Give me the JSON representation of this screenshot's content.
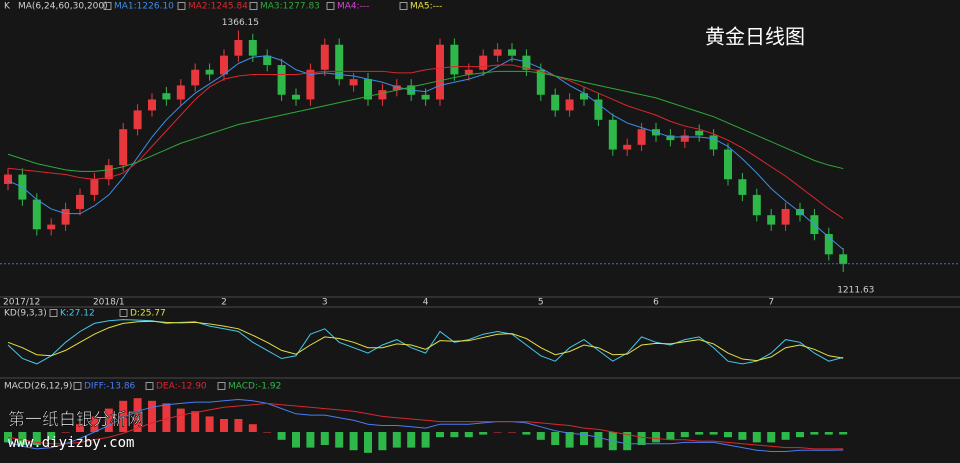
{
  "title": "黄金日线图",
  "watermark": [
    "第一纸白银分析网",
    "www.diyizby.com"
  ],
  "chart_data": [
    {
      "type": "candlestick",
      "label": "K",
      "params": "MA(6,24,60,30,200)",
      "categories": [
        "2017/12",
        null,
        null,
        null,
        null,
        null,
        null,
        "2018/1",
        null,
        null,
        null,
        null,
        null,
        null,
        null,
        "2",
        null,
        null,
        null,
        null,
        null,
        null,
        "3",
        null,
        null,
        null,
        null,
        null,
        null,
        "4",
        null,
        null,
        null,
        null,
        null,
        null,
        null,
        "5",
        null,
        null,
        null,
        null,
        null,
        null,
        null,
        "6",
        null,
        null,
        null,
        null,
        null,
        null,
        null,
        "7",
        null,
        null,
        null,
        null,
        null
      ],
      "open": [
        1268,
        1274,
        1258,
        1239,
        1242,
        1252,
        1261,
        1271,
        1280,
        1303,
        1315,
        1326,
        1322,
        1331,
        1341,
        1338,
        1350,
        1360,
        1350,
        1344,
        1325,
        1322,
        1341,
        1357,
        1331,
        1335,
        1322,
        1328,
        1331,
        1325,
        1322,
        1357,
        1338,
        1341,
        1350,
        1354,
        1350,
        1341,
        1325,
        1315,
        1326,
        1322,
        1309,
        1290,
        1293,
        1303,
        1299,
        1295,
        1302,
        1299,
        1290,
        1271,
        1261,
        1248,
        1242,
        1252,
        1248,
        1236,
        1223
      ],
      "high": [
        1278,
        1278,
        1262,
        1246,
        1256,
        1265,
        1275,
        1284,
        1307,
        1319,
        1326,
        1330,
        1335,
        1345,
        1345,
        1354,
        1366.15,
        1364,
        1354,
        1348,
        1329,
        1345,
        1361,
        1361,
        1339,
        1339,
        1332,
        1335,
        1335,
        1329,
        1361,
        1361,
        1345,
        1354,
        1358,
        1358,
        1354,
        1345,
        1329,
        1326,
        1330,
        1326,
        1313,
        1297,
        1307,
        1307,
        1303,
        1303,
        1306,
        1303,
        1294,
        1275,
        1265,
        1252,
        1256,
        1256,
        1252,
        1240,
        1227
      ],
      "low": [
        1264,
        1254,
        1235,
        1235,
        1238,
        1248,
        1257,
        1267,
        1276,
        1299,
        1311,
        1318,
        1318,
        1327,
        1334,
        1334,
        1346,
        1346,
        1340,
        1321,
        1318,
        1318,
        1337,
        1331,
        1327,
        1318,
        1318,
        1324,
        1321,
        1318,
        1318,
        1334,
        1334,
        1337,
        1346,
        1346,
        1337,
        1321,
        1311,
        1311,
        1318,
        1305,
        1286,
        1286,
        1289,
        1295,
        1292,
        1291,
        1295,
        1286,
        1267,
        1257,
        1244,
        1238,
        1238,
        1244,
        1232,
        1219,
        1211.63
      ],
      "close": [
        1274,
        1258,
        1239,
        1242,
        1252,
        1261,
        1271,
        1280,
        1303,
        1315,
        1322,
        1322,
        1331,
        1341,
        1338,
        1350,
        1360,
        1350,
        1344,
        1325,
        1322,
        1341,
        1357,
        1335,
        1335,
        1322,
        1328,
        1331,
        1325,
        1322,
        1357,
        1338,
        1341,
        1350,
        1354,
        1350,
        1341,
        1325,
        1315,
        1322,
        1322,
        1309,
        1290,
        1293,
        1303,
        1299,
        1296,
        1299,
        1299,
        1290,
        1271,
        1261,
        1248,
        1242,
        1252,
        1248,
        1236,
        1223,
        1217
      ],
      "up_color": "#e8383d",
      "down_color": "#2fb84a",
      "ylim": [
        1197,
        1376
      ],
      "series": [
        {
          "name": "MA1:1226.10",
          "color": "#3d8fe6",
          "values": [
            1270,
            1266,
            1258,
            1252,
            1249,
            1249,
            1254,
            1261,
            1272,
            1285,
            1298,
            1309,
            1318,
            1326,
            1332,
            1338,
            1345,
            1349,
            1350,
            1347,
            1341,
            1338,
            1339,
            1338,
            1337,
            1335,
            1333,
            1330,
            1328,
            1327,
            1331,
            1333,
            1335,
            1338,
            1343,
            1348,
            1346,
            1342,
            1337,
            1331,
            1326,
            1319,
            1312,
            1307,
            1304,
            1301,
            1298,
            1298,
            1298,
            1297,
            1292,
            1284,
            1275,
            1265,
            1257,
            1250,
            1242,
            1234,
            1226.1
          ]
        },
        {
          "name": "MA2:1245.84",
          "color": "#d8282e",
          "values": [
            1278,
            1277,
            1276,
            1275,
            1274,
            1272,
            1271,
            1272,
            1275,
            1282,
            1292,
            1302,
            1312,
            1322,
            1330,
            1335,
            1337,
            1338,
            1338,
            1338,
            1338,
            1339,
            1340,
            1340,
            1340,
            1340,
            1340,
            1339,
            1339,
            1341,
            1342,
            1343,
            1343,
            1343,
            1344,
            1344,
            1342,
            1340,
            1337,
            1334,
            1330,
            1326,
            1322,
            1318,
            1315,
            1312,
            1308,
            1305,
            1303,
            1300,
            1296,
            1291,
            1285,
            1279,
            1273,
            1266,
            1259,
            1252,
            1245.84
          ]
        },
        {
          "name": "MA3:1277.83",
          "color": "#2ea83a",
          "values": [
            1287,
            1284,
            1281,
            1279,
            1277,
            1276,
            1276,
            1277,
            1279,
            1282,
            1286,
            1290,
            1294,
            1297,
            1300,
            1303,
            1306,
            1308,
            1310,
            1312,
            1314,
            1316,
            1318,
            1320,
            1322,
            1324,
            1326,
            1328,
            1330,
            1332,
            1334,
            1336,
            1338,
            1339,
            1340,
            1340,
            1340,
            1339,
            1337,
            1335,
            1333,
            1331,
            1329,
            1327,
            1325,
            1323,
            1320,
            1317,
            1314,
            1311,
            1307,
            1303,
            1299,
            1295,
            1291,
            1287,
            1283,
            1280,
            1277.83
          ]
        },
        {
          "name": "MA4:---",
          "color": "#d645d6"
        },
        {
          "name": "MA5:---",
          "color": "#e6e045"
        }
      ]
    },
    {
      "type": "line",
      "title": "KD(9,3,3)",
      "ylim": [
        0,
        100
      ],
      "series": [
        {
          "name": "K:27.12",
          "color": "#45c8e8",
          "values": [
            50,
            25,
            15,
            30,
            55,
            75,
            90,
            95,
            97,
            96,
            95,
            90,
            92,
            93,
            85,
            80,
            75,
            55,
            40,
            25,
            30,
            70,
            80,
            55,
            45,
            35,
            50,
            60,
            45,
            35,
            75,
            55,
            60,
            70,
            75,
            70,
            50,
            30,
            20,
            45,
            60,
            40,
            20,
            35,
            65,
            55,
            50,
            60,
            65,
            45,
            20,
            15,
            20,
            35,
            60,
            55,
            35,
            20,
            27.12
          ]
        },
        {
          "name": "D:25.77",
          "color": "#e6e045",
          "values": [
            55,
            45,
            32,
            30,
            40,
            55,
            70,
            82,
            90,
            93,
            94,
            92,
            91,
            92,
            89,
            85,
            80,
            68,
            55,
            40,
            33,
            50,
            65,
            62,
            55,
            45,
            45,
            52,
            50,
            42,
            58,
            57,
            58,
            64,
            70,
            71,
            62,
            45,
            32,
            38,
            50,
            45,
            32,
            33,
            50,
            53,
            52,
            56,
            60,
            52,
            35,
            24,
            21,
            28,
            45,
            50,
            42,
            30,
            25.77
          ]
        }
      ]
    },
    {
      "type": "macd",
      "title": "MACD(26,12,9)",
      "ylim": [
        -20,
        30
      ],
      "series": [
        {
          "name": "DIFF:-13.86",
          "color": "#4a7cf0",
          "values": [
            -8,
            -11,
            -13,
            -12,
            -9,
            -5,
            0,
            5,
            11,
            16,
            19,
            21,
            22,
            23,
            23,
            24,
            25,
            24,
            22,
            18,
            14,
            13,
            13,
            11,
            9,
            6,
            5,
            5,
            4,
            3,
            6,
            6,
            6,
            7,
            8,
            8,
            7,
            4,
            1,
            -1,
            -2,
            -4,
            -7,
            -9,
            -9,
            -9,
            -9,
            -8,
            -8,
            -8,
            -10,
            -12,
            -14,
            -15,
            -15,
            -14,
            -14,
            -14,
            -13.86
          ]
        },
        {
          "name": "DEA:-12.90",
          "color": "#d8282e",
          "values": [
            -4,
            -6,
            -8,
            -9,
            -9,
            -8,
            -6,
            -4,
            -1,
            3,
            7,
            10,
            13,
            15,
            17,
            19,
            20,
            21,
            22,
            21,
            20,
            19,
            18,
            17,
            16,
            14,
            12,
            11,
            10,
            9,
            8,
            8,
            8,
            8,
            8,
            8,
            8,
            7,
            6,
            5,
            3,
            2,
            0,
            -2,
            -4,
            -5,
            -6,
            -6,
            -7,
            -7,
            -8,
            -9,
            -10,
            -11,
            -12,
            -12,
            -13,
            -13,
            -12.9
          ]
        },
        {
          "name": "MACD:-1.92",
          "color": "#2fb84a",
          "up_color": "#e8383d",
          "down_color": "#2fb84a",
          "bars": true,
          "values": [
            -8,
            -10,
            -10,
            -6,
            0,
            6,
            12,
            18,
            24,
            26,
            24,
            22,
            18,
            16,
            12,
            10,
            10,
            6,
            0,
            -6,
            -12,
            -12,
            -10,
            -12,
            -14,
            -16,
            -14,
            -12,
            -12,
            -12,
            -4,
            -4,
            -4,
            -2,
            0,
            0,
            -2,
            -6,
            -10,
            -12,
            -10,
            -12,
            -14,
            -14,
            -10,
            -8,
            -6,
            -4,
            -2,
            -2,
            -4,
            -6,
            -8,
            -8,
            -6,
            -4,
            -2,
            -2,
            -1.92
          ]
        }
      ]
    }
  ]
}
